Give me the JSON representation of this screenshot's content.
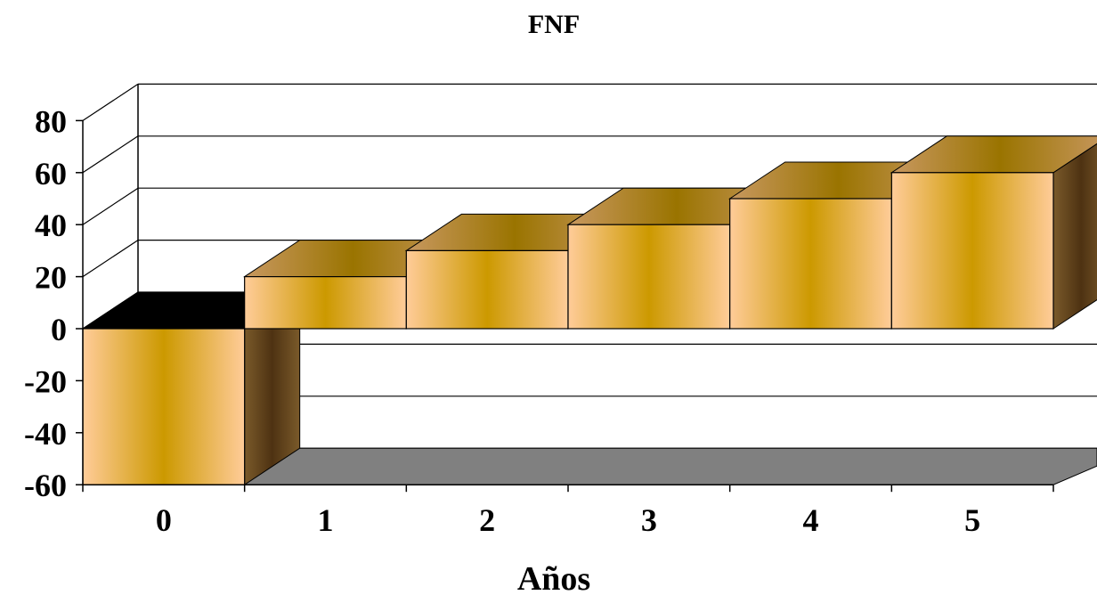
{
  "chart_data": {
    "type": "bar",
    "title": "FNF",
    "xlabel": "Años",
    "ylabel": "",
    "categories": [
      "0",
      "1",
      "2",
      "3",
      "4",
      "5"
    ],
    "values": [
      -60,
      20,
      30,
      40,
      50,
      60
    ],
    "ylim": [
      -60,
      80
    ],
    "yticks": [
      "80",
      "60",
      "40",
      "20",
      "0",
      "-20",
      "-40",
      "-60"
    ],
    "grid": true,
    "legend": "none",
    "style": "3d-columns",
    "colors": {
      "bar_light": "#ffcc99",
      "bar_mid": "#cc9900",
      "bar_dark": "#5c3d17",
      "bar_top": "#c8a060",
      "floor": "#808080",
      "negative_top": "#000000"
    }
  }
}
